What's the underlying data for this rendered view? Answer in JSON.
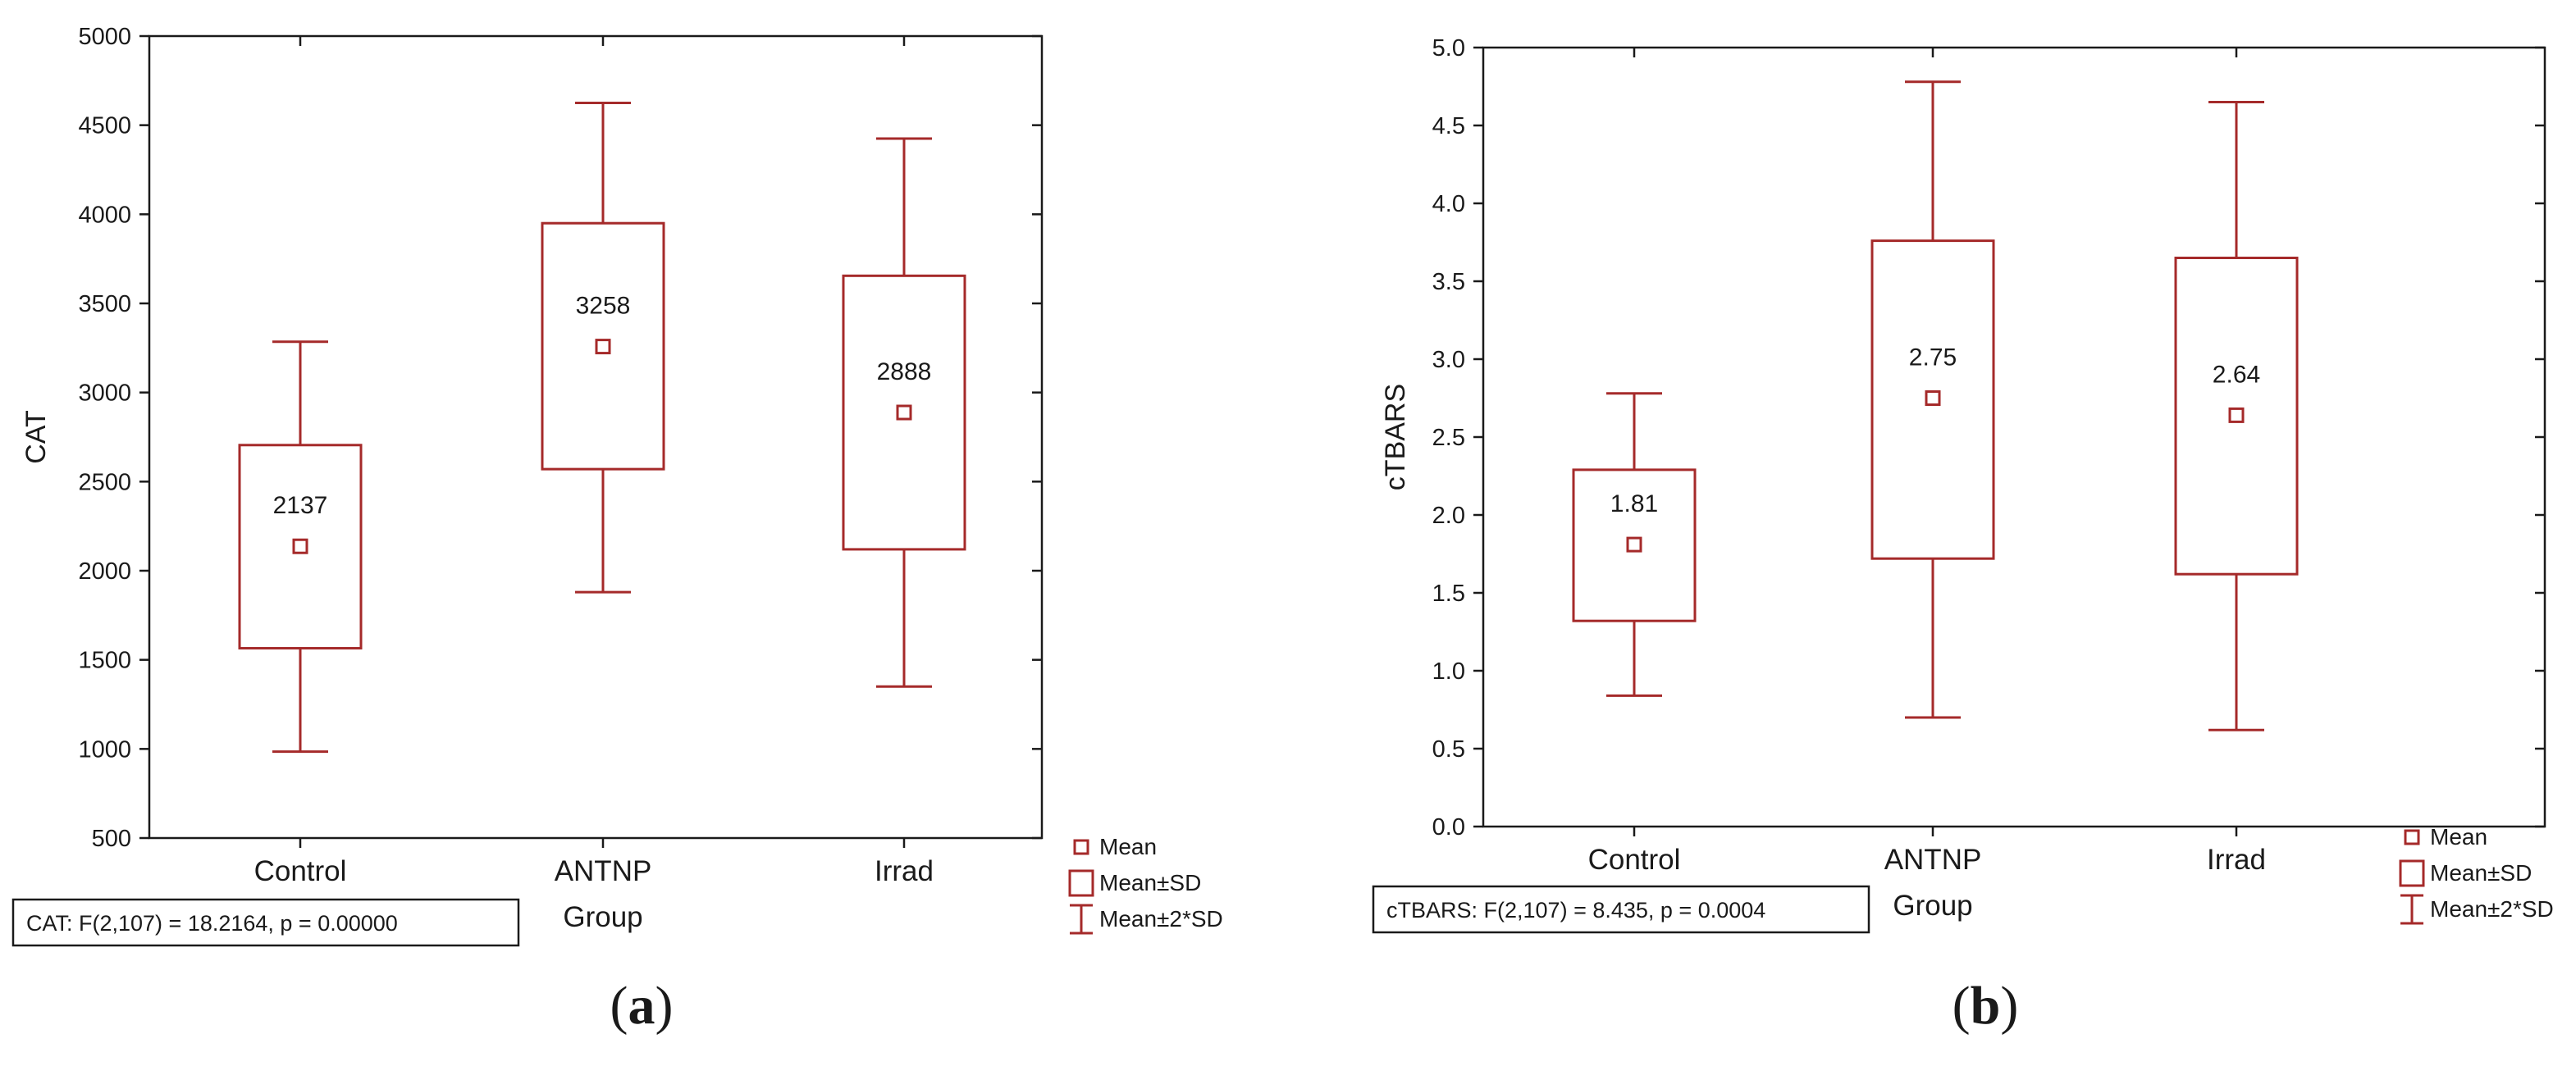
{
  "colors": {
    "series": "#a52a2a",
    "axis": "#1a1a1a",
    "background": "#ffffff"
  },
  "legend_items": [
    {
      "icon": "mean-marker-icon",
      "label": "Mean"
    },
    {
      "icon": "sd-box-icon",
      "label": "Mean±SD"
    },
    {
      "icon": "whisker-icon",
      "label": "Mean±2*SD"
    }
  ],
  "chart_data": [
    {
      "type": "box",
      "panel_label": [
        "(",
        "a",
        ")"
      ],
      "xlabel": "Group",
      "ylabel": "CAT",
      "ylim": [
        500,
        5000
      ],
      "yticks": [
        "500",
        "1000",
        "1500",
        "2000",
        "2500",
        "3000",
        "3500",
        "4000",
        "4500",
        "5000"
      ],
      "categories": [
        "Control",
        "ANTNP",
        "Irrad"
      ],
      "mean": [
        2137,
        3258,
        2888
      ],
      "mean_labels": [
        "2137",
        "3258",
        "2888"
      ],
      "sd_low": [
        1565,
        2570,
        2120
      ],
      "sd_high": [
        2705,
        3950,
        3655
      ],
      "whisker_low": [
        985,
        1880,
        1350
      ],
      "whisker_high": [
        3285,
        4625,
        4425
      ],
      "stat_text": "CAT:   F(2,107) = 18.2164, p = 0.00000",
      "legend": "right"
    },
    {
      "type": "box",
      "panel_label": [
        "(",
        "b",
        ")"
      ],
      "xlabel": "Group",
      "ylabel": "cTBARS",
      "ylim": [
        0.0,
        5.0
      ],
      "yticks": [
        "0.0",
        "0.5",
        "1.0",
        "1.5",
        "2.0",
        "2.5",
        "3.0",
        "3.5",
        "4.0",
        "4.5",
        "5.0"
      ],
      "categories": [
        "Control",
        "ANTNP",
        "Irrad"
      ],
      "mean": [
        1.81,
        2.75,
        2.64
      ],
      "mean_labels": [
        "1.81",
        "2.75",
        "2.64"
      ],
      "sd_low": [
        1.32,
        1.72,
        1.62
      ],
      "sd_high": [
        2.29,
        3.76,
        3.65
      ],
      "whisker_low": [
        0.84,
        0.7,
        0.62
      ],
      "whisker_high": [
        2.78,
        4.78,
        4.65
      ],
      "stat_text": "cTBARS:   F(2,107) = 8.435, p = 0.0004",
      "legend": "right"
    }
  ]
}
